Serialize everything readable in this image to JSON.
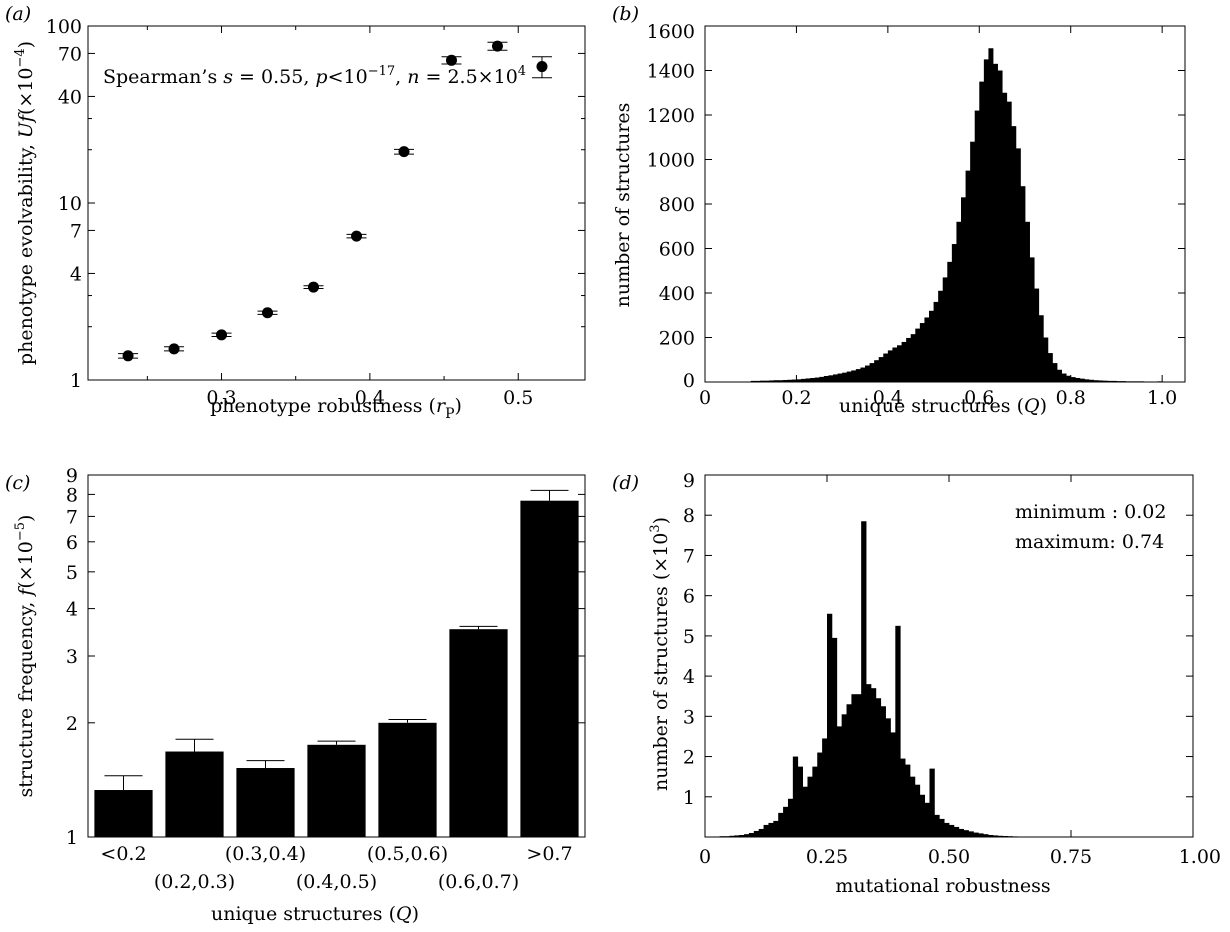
{
  "colors": {
    "ink": "#000000",
    "background": "#ffffff"
  },
  "panel_labels": {
    "a": "(a)",
    "b": "(b)",
    "c": "(c)",
    "d": "(d)"
  },
  "panel_a_annotation": "Spearman’s s = 0.55, p<10⁻¹⁷, n = 2.5×10⁴",
  "panel_d_annotations": {
    "minimum": "minimum : 0.02",
    "maximum": "maximum: 0.74"
  },
  "chart_data": [
    {
      "id": "a",
      "type": "scatter",
      "xlabel": "phenotype robustness (rₚ)",
      "ylabel": "phenotype evolvability, Uf(×10⁻⁴)",
      "xscale": "linear",
      "yscale": "log",
      "xlim": [
        0.21,
        0.545
      ],
      "ylim": [
        1,
        100
      ],
      "xticks": [
        0.3,
        0.4,
        0.5
      ],
      "xtick_labels": [
        "0.3",
        "0.4",
        "0.5"
      ],
      "yticks": [
        1,
        4,
        7,
        10,
        40,
        70,
        100
      ],
      "ytick_labels": [
        "1",
        "4",
        "7",
        "10",
        "40",
        "70",
        "100"
      ],
      "grid": false,
      "points": [
        {
          "x": 0.237,
          "y": 1.37,
          "err": 0.04
        },
        {
          "x": 0.268,
          "y": 1.5,
          "err": 0.04
        },
        {
          "x": 0.3,
          "y": 1.8,
          "err": 0.04
        },
        {
          "x": 0.331,
          "y": 2.4,
          "err": 0.05
        },
        {
          "x": 0.362,
          "y": 3.35,
          "err": 0.06
        },
        {
          "x": 0.391,
          "y": 6.5,
          "err": 0.15
        },
        {
          "x": 0.423,
          "y": 19.5,
          "err": 0.6
        },
        {
          "x": 0.455,
          "y": 64,
          "err": 3
        },
        {
          "x": 0.486,
          "y": 77,
          "err": 4
        },
        {
          "x": 0.516,
          "y": 59,
          "err": 8
        }
      ]
    },
    {
      "id": "b",
      "type": "bar",
      "subtype": "histogram",
      "xlabel": "unique structures (Q)",
      "ylabel": "number of structures",
      "xlim": [
        0,
        1.05
      ],
      "ylim": [
        0,
        1600
      ],
      "xticks": [
        0,
        0.2,
        0.4,
        0.6,
        0.8,
        1.0
      ],
      "xtick_labels": [
        "0",
        "0.2",
        "0.4",
        "0.6",
        "0.8",
        "1.0"
      ],
      "yticks": [
        0,
        200,
        400,
        600,
        800,
        1000,
        1200,
        1400,
        1600
      ],
      "ytick_labels": [
        "0",
        "200",
        "400",
        "600",
        "800",
        "1000",
        "1200",
        "1400",
        "1600"
      ],
      "grid": false,
      "bin_width": 0.01,
      "bins": [
        [
          0.1,
          5
        ],
        [
          0.11,
          5
        ],
        [
          0.12,
          6
        ],
        [
          0.13,
          6
        ],
        [
          0.14,
          7
        ],
        [
          0.15,
          8
        ],
        [
          0.16,
          8
        ],
        [
          0.17,
          9
        ],
        [
          0.18,
          10
        ],
        [
          0.19,
          11
        ],
        [
          0.2,
          12
        ],
        [
          0.21,
          14
        ],
        [
          0.22,
          16
        ],
        [
          0.23,
          18
        ],
        [
          0.24,
          20
        ],
        [
          0.25,
          23
        ],
        [
          0.26,
          27
        ],
        [
          0.27,
          30
        ],
        [
          0.28,
          34
        ],
        [
          0.29,
          38
        ],
        [
          0.3,
          42
        ],
        [
          0.31,
          47
        ],
        [
          0.32,
          52
        ],
        [
          0.33,
          58
        ],
        [
          0.34,
          65
        ],
        [
          0.35,
          74
        ],
        [
          0.36,
          85
        ],
        [
          0.37,
          98
        ],
        [
          0.38,
          112
        ],
        [
          0.39,
          128
        ],
        [
          0.4,
          142
        ],
        [
          0.41,
          155
        ],
        [
          0.42,
          165
        ],
        [
          0.43,
          180
        ],
        [
          0.44,
          198
        ],
        [
          0.45,
          215
        ],
        [
          0.46,
          240
        ],
        [
          0.47,
          265
        ],
        [
          0.48,
          290
        ],
        [
          0.49,
          320
        ],
        [
          0.5,
          360
        ],
        [
          0.51,
          410
        ],
        [
          0.52,
          470
        ],
        [
          0.53,
          540
        ],
        [
          0.54,
          620
        ],
        [
          0.55,
          720
        ],
        [
          0.56,
          830
        ],
        [
          0.57,
          950
        ],
        [
          0.58,
          1080
        ],
        [
          0.59,
          1220
        ],
        [
          0.6,
          1350
        ],
        [
          0.61,
          1450
        ],
        [
          0.62,
          1500
        ],
        [
          0.63,
          1430
        ],
        [
          0.64,
          1400
        ],
        [
          0.65,
          1300
        ],
        [
          0.66,
          1260
        ],
        [
          0.67,
          1150
        ],
        [
          0.68,
          1050
        ],
        [
          0.69,
          880
        ],
        [
          0.7,
          720
        ],
        [
          0.71,
          560
        ],
        [
          0.72,
          420
        ],
        [
          0.73,
          300
        ],
        [
          0.74,
          200
        ],
        [
          0.75,
          130
        ],
        [
          0.76,
          85
        ],
        [
          0.77,
          55
        ],
        [
          0.78,
          38
        ],
        [
          0.79,
          28
        ],
        [
          0.8,
          22
        ],
        [
          0.81,
          18
        ],
        [
          0.82,
          15
        ],
        [
          0.83,
          12
        ],
        [
          0.84,
          10
        ],
        [
          0.85,
          8
        ],
        [
          0.86,
          7
        ],
        [
          0.87,
          6
        ],
        [
          0.88,
          5
        ],
        [
          0.89,
          5
        ],
        [
          0.9,
          4
        ],
        [
          0.91,
          4
        ],
        [
          0.92,
          3
        ],
        [
          0.93,
          3
        ],
        [
          0.94,
          3
        ],
        [
          0.95,
          3
        ],
        [
          0.96,
          2
        ],
        [
          0.97,
          2
        ],
        [
          0.98,
          2
        ],
        [
          0.99,
          3
        ]
      ]
    },
    {
      "id": "c",
      "type": "bar",
      "xlabel": "unique structures (Q)",
      "ylabel": "structure frequency, f(×10⁻⁵)",
      "yscale": "log",
      "ylim": [
        1,
        9
      ],
      "yticks": [
        1,
        2,
        3,
        4,
        5,
        6,
        7,
        8,
        9
      ],
      "ytick_labels": [
        "1",
        "2",
        "3",
        "4",
        "5",
        "6",
        "7",
        "8",
        "9"
      ],
      "grid": false,
      "categories": [
        "<0.2",
        "(0.2,0.3)",
        "(0.3,0.4)",
        "(0.4,0.5)",
        "(0.5,0.6)",
        "(0.6,0.7)",
        ">0.7"
      ],
      "values": [
        1.33,
        1.68,
        1.52,
        1.75,
        2.0,
        3.53,
        7.7
      ],
      "errors": [
        0.12,
        0.13,
        0.07,
        0.04,
        0.04,
        0.06,
        0.5
      ]
    },
    {
      "id": "d",
      "type": "bar",
      "subtype": "histogram",
      "xlabel": "mutational robustness",
      "ylabel": "number of structures (×10³)",
      "xlim": [
        0,
        1.0
      ],
      "ylim": [
        0,
        9
      ],
      "xticks": [
        0,
        0.25,
        0.5,
        0.75,
        1.0
      ],
      "xtick_labels": [
        "0",
        "0.25",
        "0.50",
        "0.75",
        "1.00"
      ],
      "yticks": [
        1,
        2,
        3,
        4,
        5,
        6,
        7,
        8,
        9
      ],
      "ytick_labels": [
        "1",
        "2",
        "3",
        "4",
        "5",
        "6",
        "7",
        "8",
        "9"
      ],
      "grid": false,
      "bin_width": 0.01,
      "bins": [
        [
          0.02,
          0.01
        ],
        [
          0.03,
          0.02
        ],
        [
          0.04,
          0.02
        ],
        [
          0.05,
          0.03
        ],
        [
          0.06,
          0.04
        ],
        [
          0.07,
          0.05
        ],
        [
          0.08,
          0.07
        ],
        [
          0.09,
          0.1
        ],
        [
          0.1,
          0.15
        ],
        [
          0.11,
          0.2
        ],
        [
          0.12,
          0.3
        ],
        [
          0.13,
          0.35
        ],
        [
          0.14,
          0.4
        ],
        [
          0.15,
          0.6
        ],
        [
          0.16,
          0.75
        ],
        [
          0.17,
          0.95
        ],
        [
          0.18,
          2.0
        ],
        [
          0.19,
          1.75
        ],
        [
          0.2,
          1.25
        ],
        [
          0.21,
          1.5
        ],
        [
          0.22,
          1.75
        ],
        [
          0.23,
          2.1
        ],
        [
          0.24,
          2.45
        ],
        [
          0.25,
          5.55
        ],
        [
          0.26,
          4.95
        ],
        [
          0.27,
          2.75
        ],
        [
          0.28,
          3.05
        ],
        [
          0.29,
          3.3
        ],
        [
          0.3,
          3.55
        ],
        [
          0.31,
          3.55
        ],
        [
          0.32,
          7.85
        ],
        [
          0.33,
          3.8
        ],
        [
          0.34,
          3.7
        ],
        [
          0.35,
          3.45
        ],
        [
          0.36,
          3.25
        ],
        [
          0.37,
          2.95
        ],
        [
          0.38,
          2.6
        ],
        [
          0.39,
          5.25
        ],
        [
          0.4,
          1.95
        ],
        [
          0.41,
          1.8
        ],
        [
          0.42,
          1.5
        ],
        [
          0.43,
          1.3
        ],
        [
          0.44,
          1.05
        ],
        [
          0.45,
          0.85
        ],
        [
          0.46,
          1.7
        ],
        [
          0.47,
          0.55
        ],
        [
          0.48,
          0.45
        ],
        [
          0.49,
          0.35
        ],
        [
          0.5,
          0.3
        ],
        [
          0.51,
          0.25
        ],
        [
          0.52,
          0.2
        ],
        [
          0.53,
          0.17
        ],
        [
          0.54,
          0.14
        ],
        [
          0.55,
          0.11
        ],
        [
          0.56,
          0.09
        ],
        [
          0.57,
          0.07
        ],
        [
          0.58,
          0.05
        ],
        [
          0.59,
          0.04
        ],
        [
          0.6,
          0.03
        ],
        [
          0.61,
          0.025
        ],
        [
          0.62,
          0.02
        ],
        [
          0.63,
          0.015
        ],
        [
          0.64,
          0.01
        ],
        [
          0.65,
          0.01
        ],
        [
          0.66,
          0.01
        ],
        [
          0.67,
          0.01
        ],
        [
          0.68,
          0.01
        ],
        [
          0.69,
          0.01
        ],
        [
          0.7,
          0.01
        ],
        [
          0.71,
          0.01
        ],
        [
          0.72,
          0.01
        ],
        [
          0.73,
          0.01
        ],
        [
          0.74,
          0.01
        ]
      ]
    }
  ]
}
